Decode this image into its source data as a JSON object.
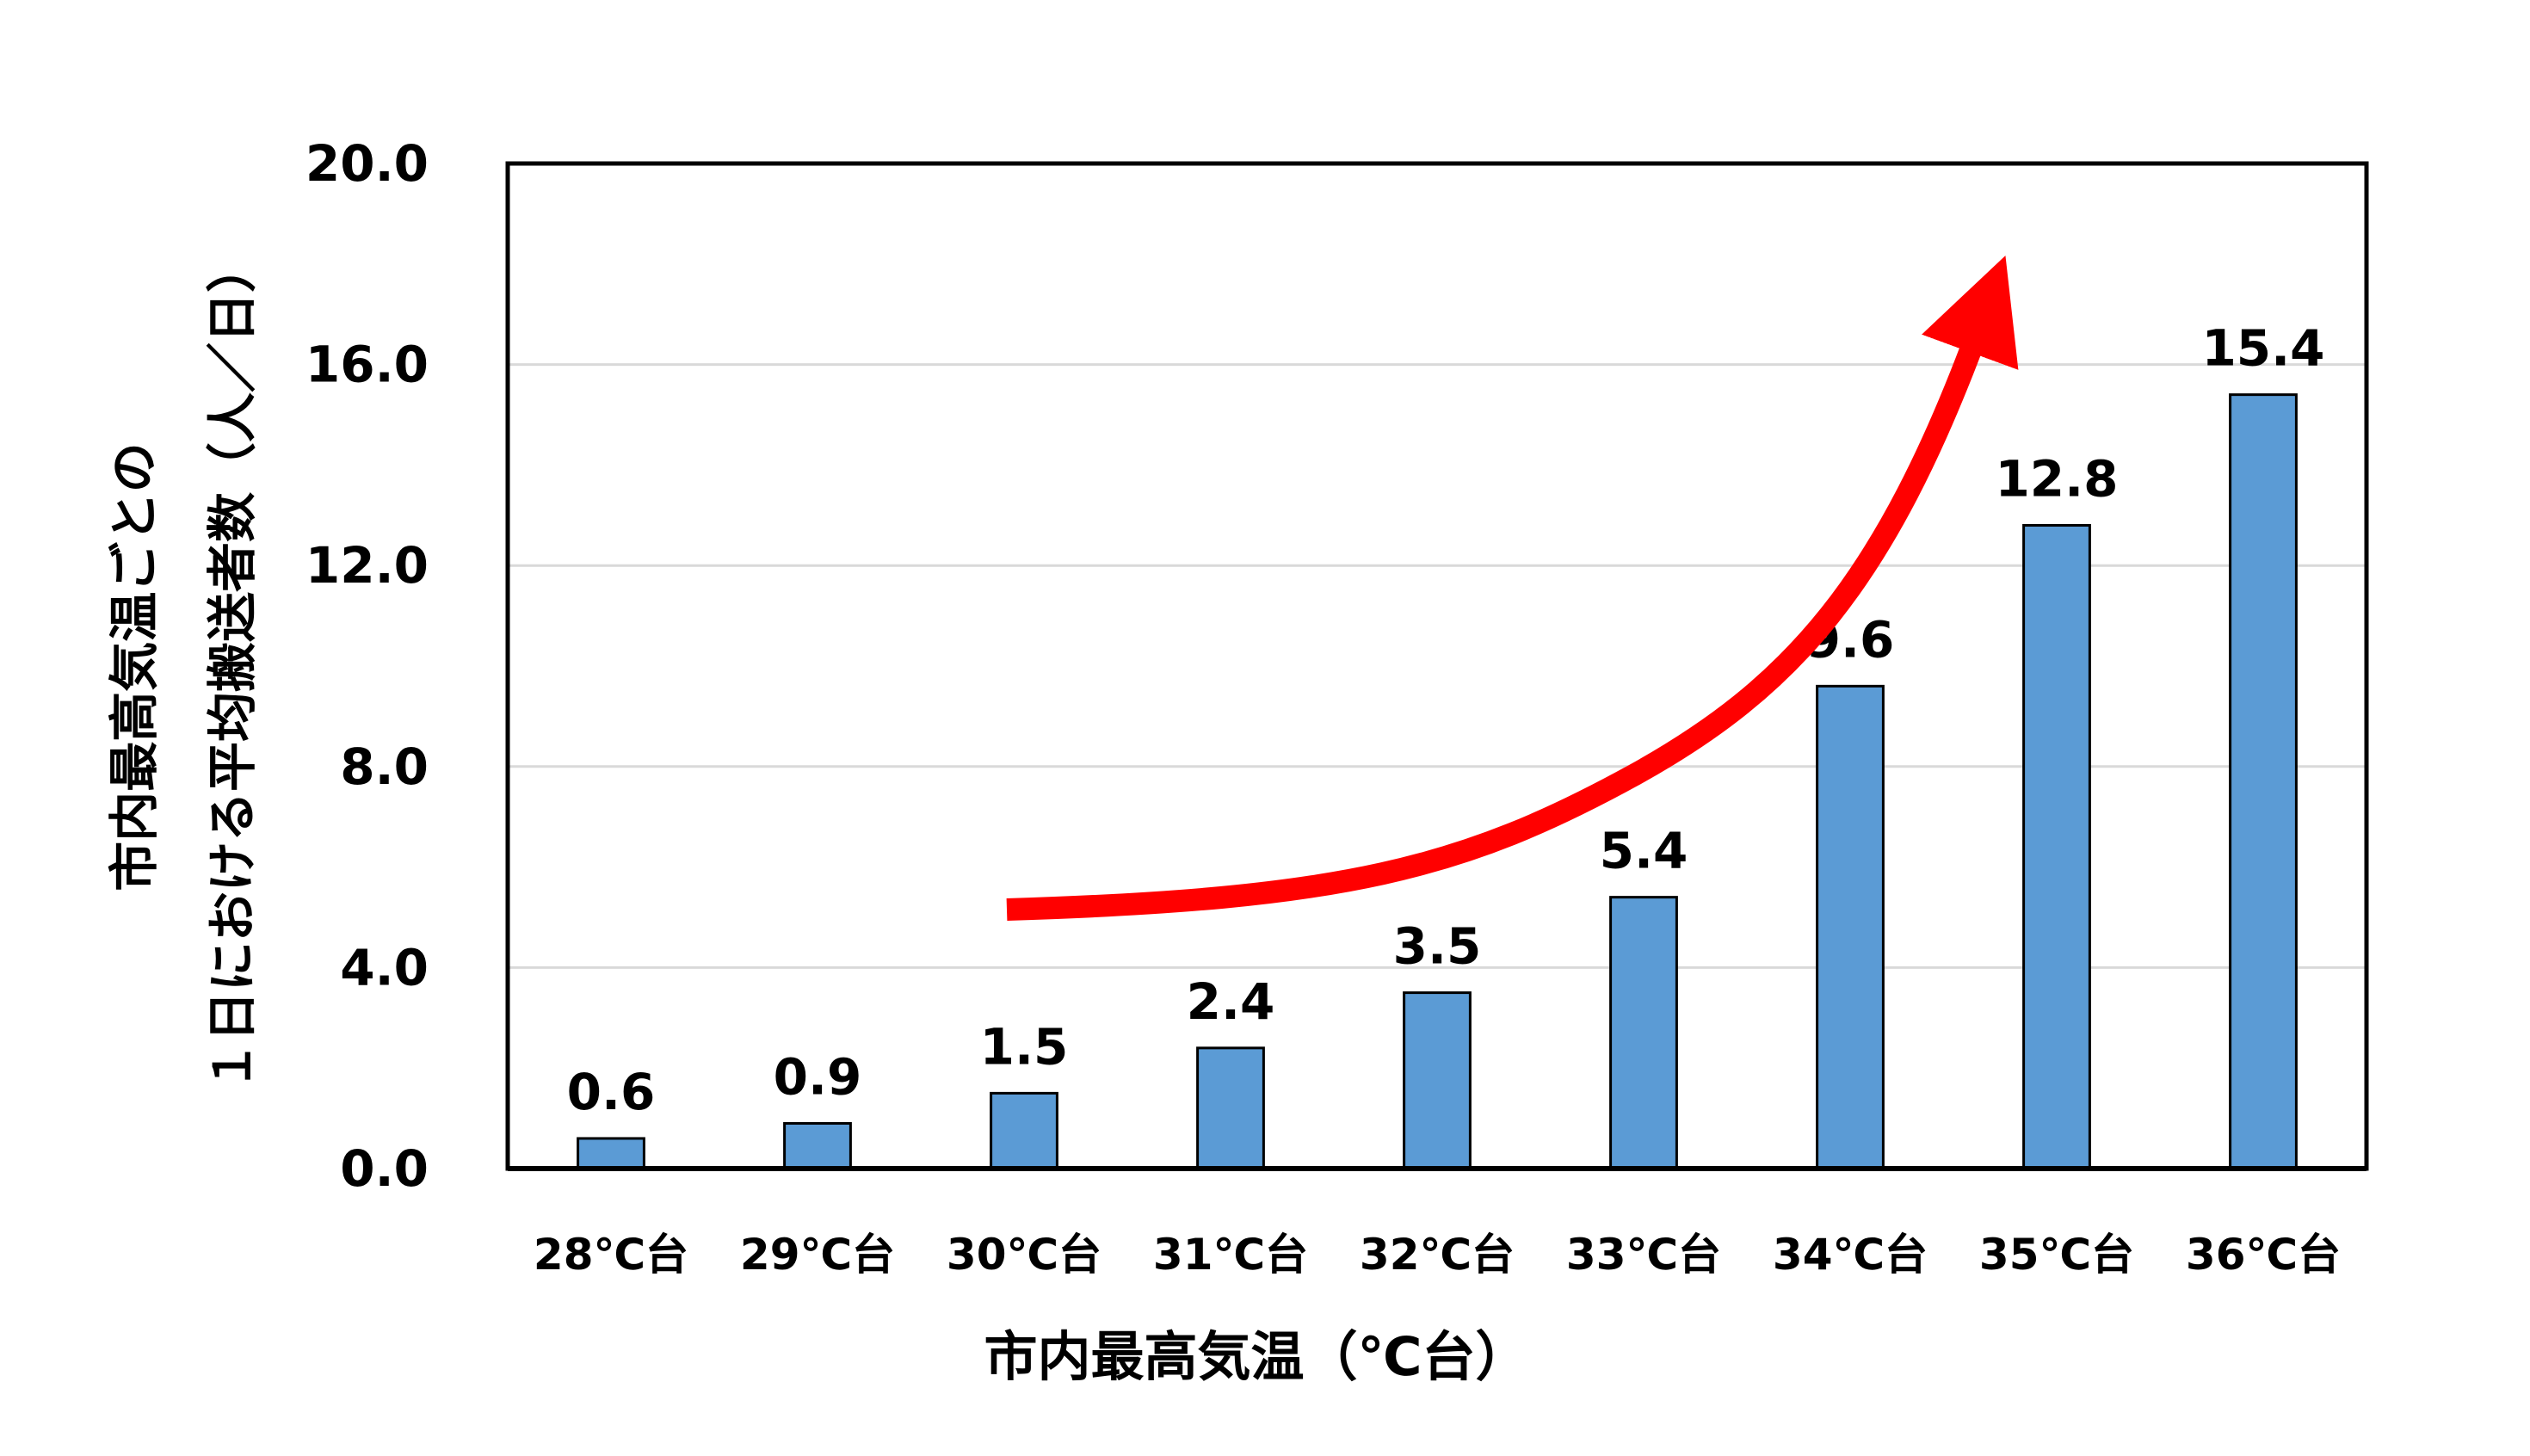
{
  "chart_data": {
    "type": "bar",
    "categories": [
      "28℃台",
      "29℃台",
      "30℃台",
      "31℃台",
      "32℃台",
      "33℃台",
      "34℃台",
      "35℃台",
      "36℃台"
    ],
    "values": [
      0.6,
      0.9,
      1.5,
      2.4,
      3.5,
      5.4,
      9.6,
      12.8,
      15.4
    ],
    "value_labels": [
      "0.6",
      "0.9",
      "1.5",
      "2.4",
      "3.5",
      "5.4",
      "9.6",
      "12.8",
      "15.4"
    ],
    "title": "",
    "xlabel": "市内最高気温（℃台）",
    "ylabel": [
      "市内最高気温ごとの",
      "１日における平均搬送者数（人／日）"
    ],
    "ylim": [
      0,
      20
    ],
    "yticks": [
      0,
      4,
      8,
      12,
      16,
      20
    ],
    "ytick_labels": [
      "0.0",
      "4.0",
      "8.0",
      "12.0",
      "16.0",
      "20.0"
    ],
    "grid": true,
    "legend": "none",
    "annotation": "red upward trend arrow",
    "colors": {
      "bar": "#5b9bd5",
      "bar_edge": "#000000",
      "arrow": "#ff0000",
      "grid": "#d9d9d9",
      "axis": "#000000"
    }
  }
}
